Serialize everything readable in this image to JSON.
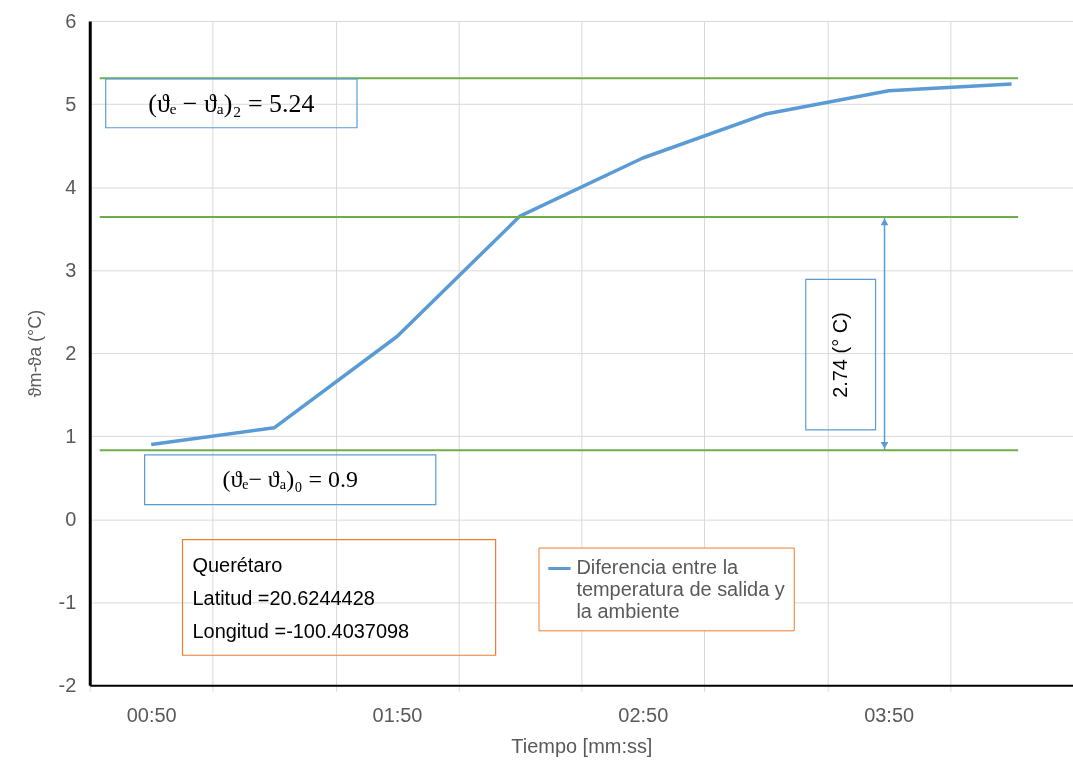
{
  "chart_data": {
    "type": "line",
    "xlabel": "Tiempo [mm:ss]",
    "ylabel": "ϑm-ϑa (°C)",
    "categories": [
      "00:50",
      null,
      "01:50",
      null,
      "02:50",
      null,
      "03:50",
      null
    ],
    "series": [
      {
        "name": "Diferencia entre la temperatura de salida y la ambiente",
        "color": "#5b9bd5",
        "values": [
          0.9,
          1.1,
          2.2,
          3.65,
          4.35,
          4.88,
          5.16,
          5.24
        ]
      }
    ],
    "ylim": [
      -2,
      6
    ],
    "yticks": [
      -2,
      -1,
      0,
      1,
      2,
      3,
      4,
      5,
      6
    ],
    "grid": true,
    "legend": "bottom",
    "ref_lines": [
      {
        "axis": "y",
        "value": 5.31,
        "color": "#70ad47"
      },
      {
        "axis": "y",
        "value": 3.64,
        "color": "#70ad47"
      },
      {
        "axis": "y",
        "value": 0.83,
        "color": "#70ad47"
      }
    ],
    "annotations": [
      "(ϑₑ − ϑₐ)₂ = 5.24",
      "(ϑₑ− ϑₐ)₀ = 0.9",
      "2.74 (°  C)",
      "Querétaro\nLatitud =20.6244428\nLongitud =-100.4037098"
    ]
  }
}
